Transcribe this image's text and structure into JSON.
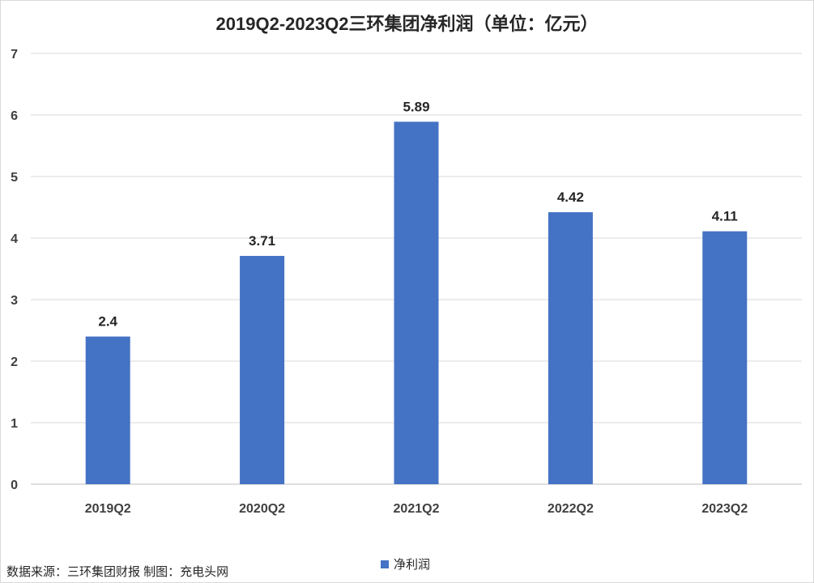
{
  "chart_data": {
    "type": "bar",
    "title": "2019Q2-2023Q2三环集团净利润（单位：亿元）",
    "categories": [
      "2019Q2",
      "2020Q2",
      "2021Q2",
      "2022Q2",
      "2023Q2"
    ],
    "series": [
      {
        "name": "净利润",
        "values": [
          2.4,
          3.71,
          5.89,
          4.42,
          4.11
        ],
        "color": "#4472C4"
      }
    ],
    "data_labels": [
      "2.4",
      "3.71",
      "5.89",
      "4.42",
      "4.11"
    ],
    "y_ticks": [
      0,
      1,
      2,
      3,
      4,
      5,
      6,
      7
    ],
    "ylim": [
      0,
      7
    ],
    "grid": true,
    "legend_position": "bottom"
  },
  "source_note": "数据来源：三环集团财报 制图：充电头网"
}
